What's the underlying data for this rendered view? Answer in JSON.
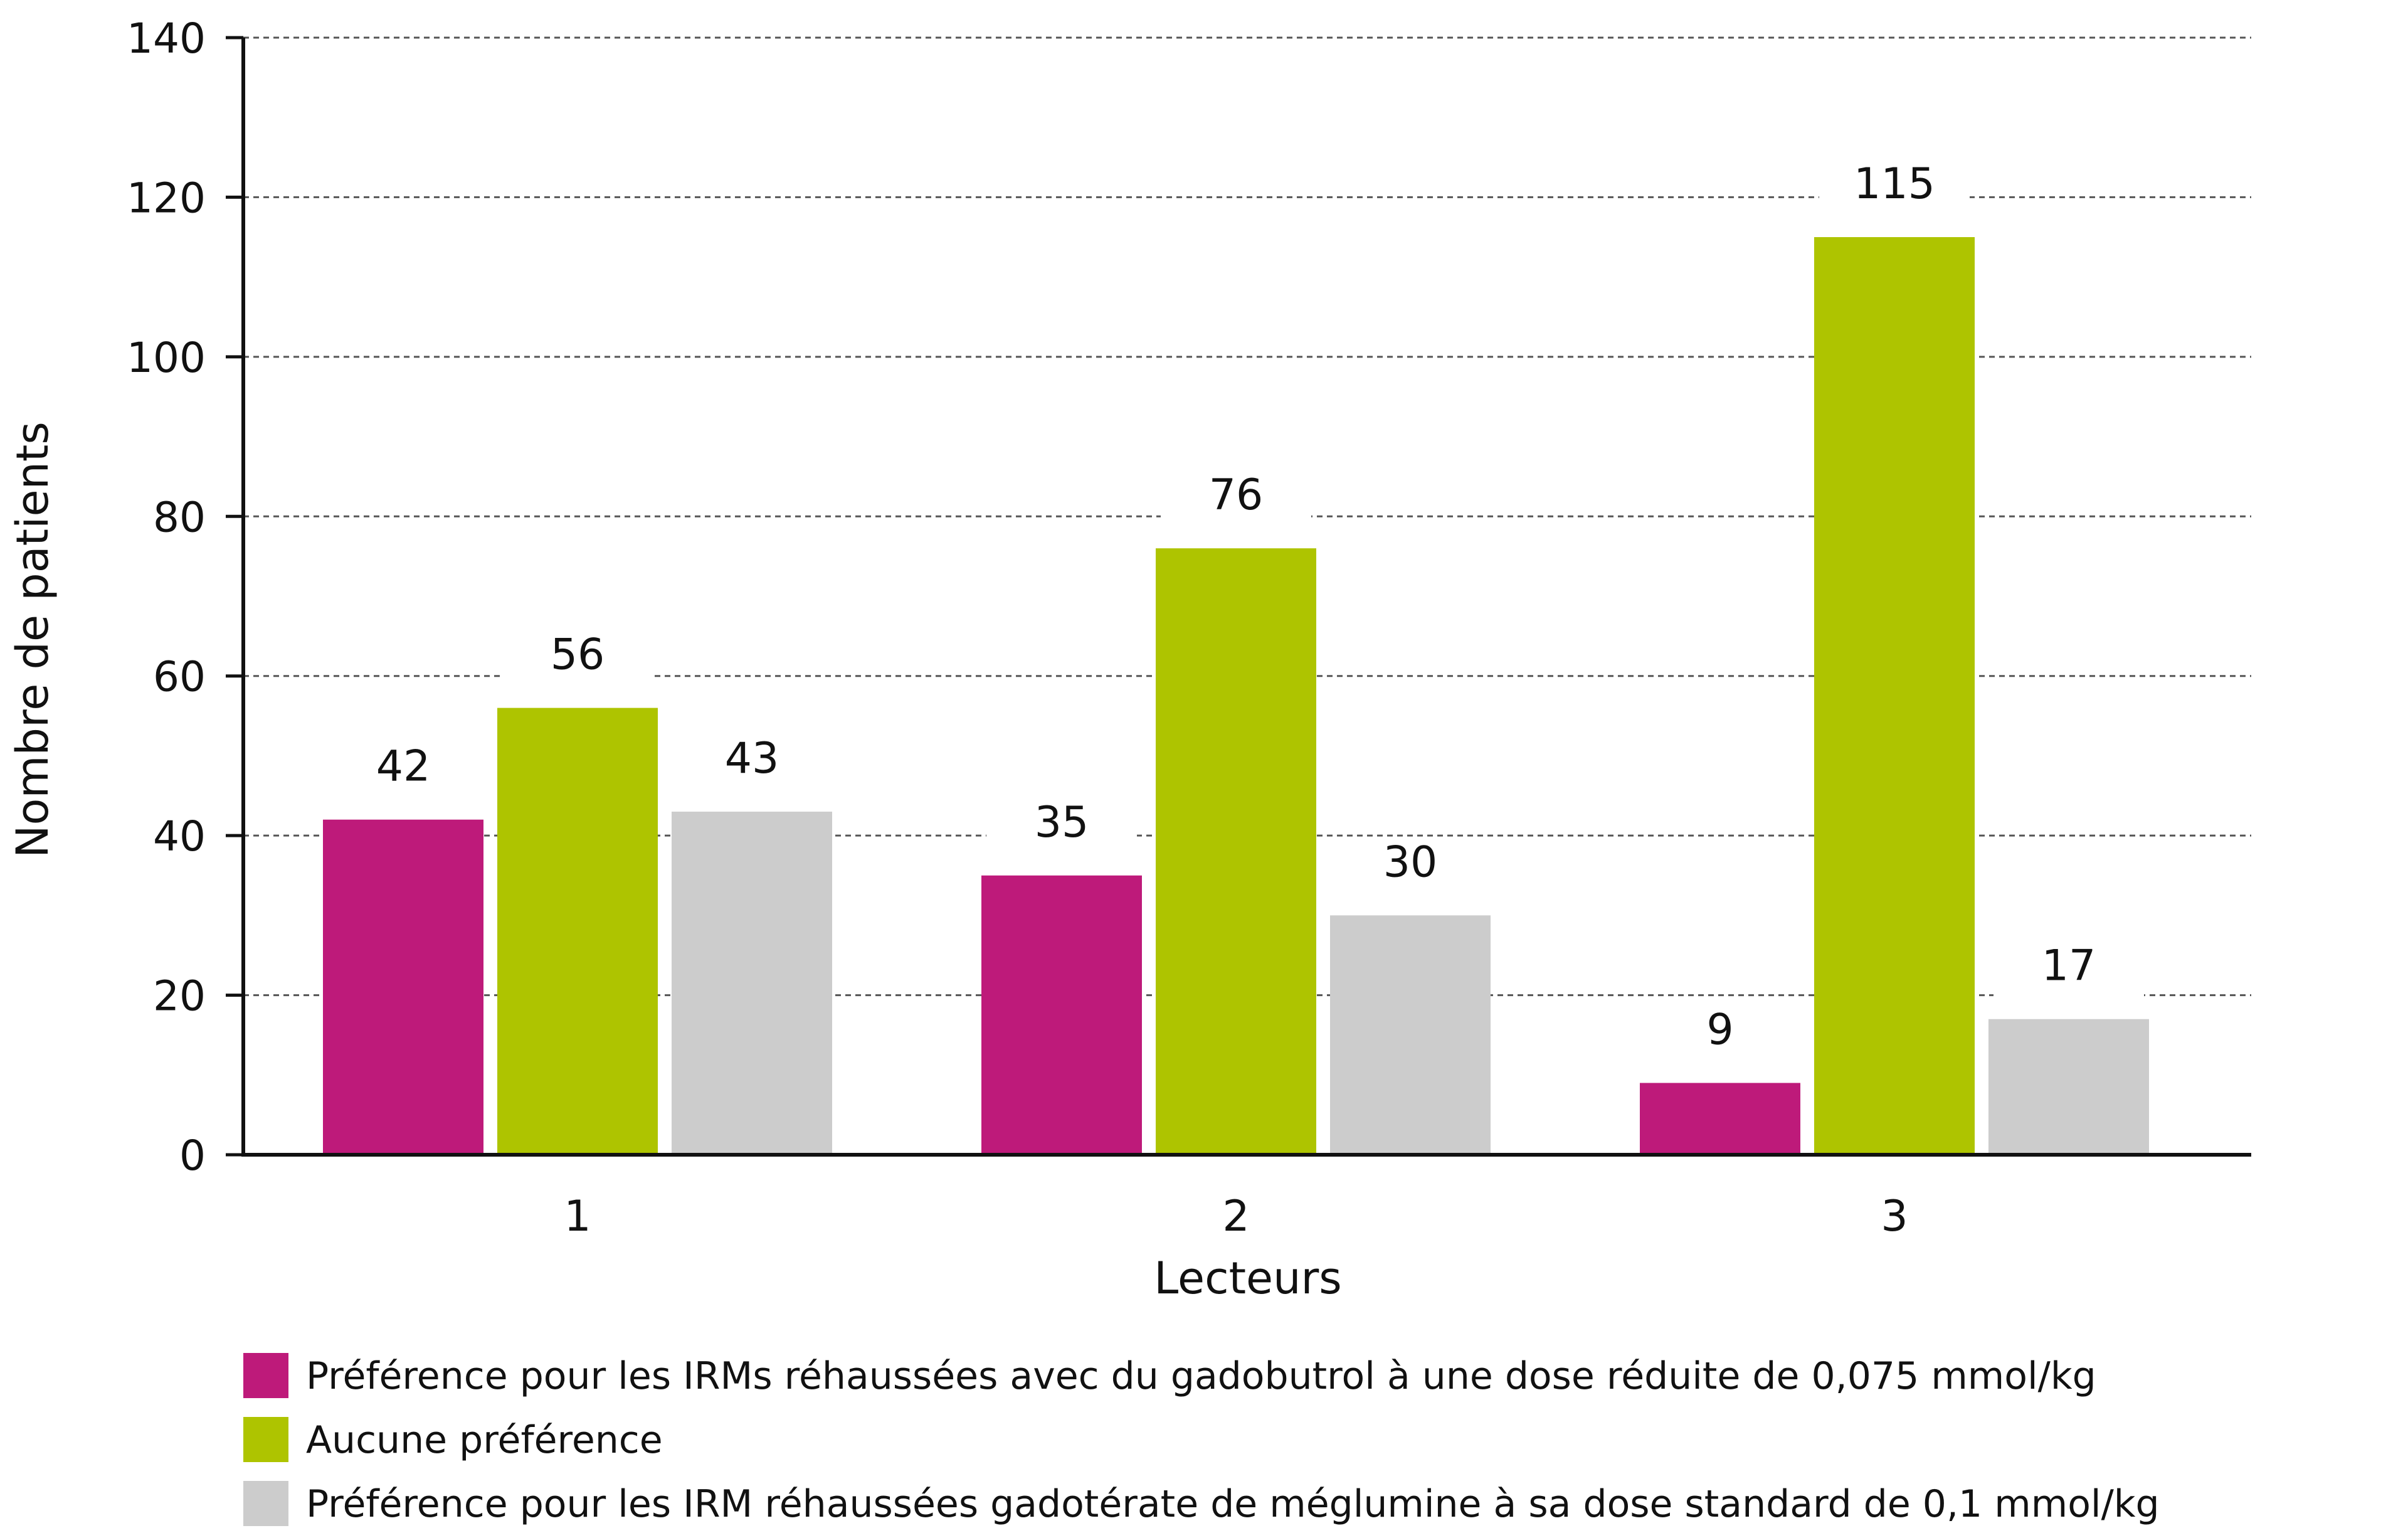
{
  "chart_data": {
    "type": "bar",
    "categories": [
      "1",
      "2",
      "3"
    ],
    "series": [
      {
        "name": "Préférence pour les IRMs réhaussées avec du gadobutrol à une dose réduite de 0,075 mmol/kg",
        "values": [
          42,
          35,
          9
        ],
        "color": "#be1a7a"
      },
      {
        "name": "Aucune préférence",
        "values": [
          56,
          76,
          115
        ],
        "color": "#aec400"
      },
      {
        "name": "Préférence pour les IRM réhaussées gadotérate de méglumine à sa dose standard de 0,1 mmol/kg",
        "values": [
          43,
          30,
          17
        ],
        "color": "#cccccc"
      }
    ],
    "title": "",
    "xlabel": "Lecteurs",
    "ylabel": "Nombre de patients",
    "ylim": [
      0,
      140
    ],
    "yticks": [
      0,
      20,
      40,
      60,
      80,
      100,
      120,
      140
    ],
    "grid": true,
    "legend_position": "bottom"
  }
}
